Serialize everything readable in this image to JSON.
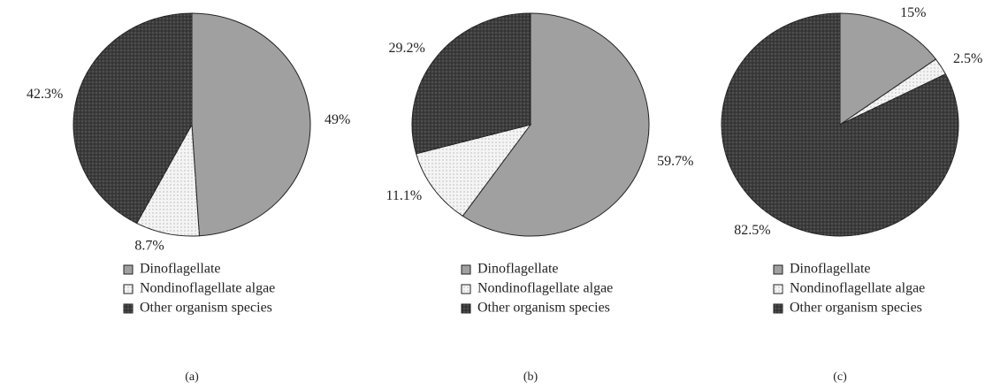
{
  "chart_data": [
    {
      "type": "pie",
      "subtitle": "(a)",
      "categories": [
        "Dinoflagellate",
        "Nondinoflagellate algae",
        "Other organism species"
      ],
      "values": [
        49,
        8.7,
        42.3
      ],
      "value_labels": [
        "49%",
        "8.7%",
        "42.3%"
      ],
      "colors": [
        "#a0a0a0",
        "#f4f4f4",
        "#3c3c3c"
      ]
    },
    {
      "type": "pie",
      "subtitle": "(b)",
      "categories": [
        "Dinoflagellate",
        "Nondinoflagellate algae",
        "Other organism species"
      ],
      "values": [
        59.7,
        11.1,
        29.2
      ],
      "value_labels": [
        "59.7%",
        "11.1%",
        "29.2%"
      ],
      "colors": [
        "#a0a0a0",
        "#f4f4f4",
        "#3c3c3c"
      ]
    },
    {
      "type": "pie",
      "subtitle": "(c)",
      "categories": [
        "Dinoflagellate",
        "Nondinoflagellate algae",
        "Other organism species"
      ],
      "values": [
        15,
        2.5,
        82.5
      ],
      "value_labels": [
        "15%",
        "2.5%",
        "82.5%"
      ],
      "colors": [
        "#a0a0a0",
        "#f4f4f4",
        "#3c3c3c"
      ]
    }
  ]
}
